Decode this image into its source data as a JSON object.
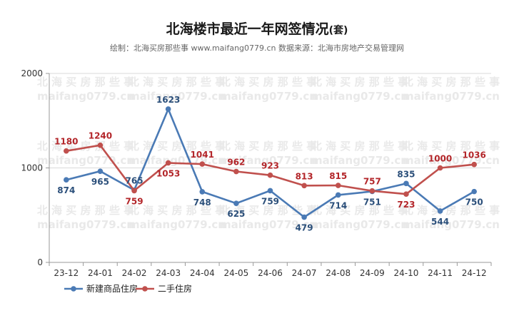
{
  "page": {
    "title": "北海楼市最近一年网签情况",
    "title_unit": "(套)",
    "subtitle": "绘制：北海买房那些事 www.maifang0779.cn 数据来源：北海市房地产交易管理网",
    "watermark_lines": [
      "北 海 买 房 那 些 事",
      "maifang0779.cn"
    ]
  },
  "chart_data": {
    "type": "line",
    "title": "北海楼市最近一年网签情况(套)",
    "categories": [
      "23-12",
      "24-01",
      "24-02",
      "24-03",
      "24-04",
      "24-05",
      "24-06",
      "24-07",
      "24-08",
      "24-09",
      "24-10",
      "24-11",
      "24-12"
    ],
    "y_ticks": [
      0,
      1000,
      2000
    ],
    "ylim": [
      0,
      2000
    ],
    "grid": true,
    "legend_position": "bottom-left",
    "series": [
      {
        "name": "新建商品住房",
        "color": "#4a7ab5",
        "label_color": "#2b4f7a",
        "values": [
          874,
          965,
          765,
          1623,
          748,
          625,
          759,
          479,
          714,
          751,
          835,
          544,
          750
        ]
      },
      {
        "name": "二手住房",
        "color": "#c0504d",
        "label_color": "#b3262a",
        "values": [
          1180,
          1240,
          759,
          1053,
          1041,
          962,
          923,
          813,
          815,
          757,
          723,
          1000,
          1036
        ]
      }
    ]
  }
}
